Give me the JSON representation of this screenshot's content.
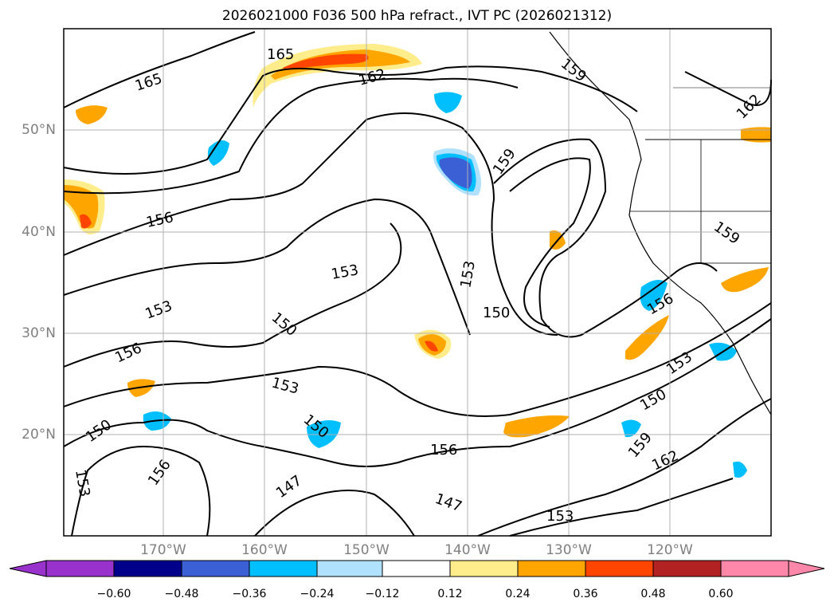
{
  "title": "2026021000 F036 500 hPa refract., IVT PC (2026021312)",
  "lat_labels": [
    "50°N",
    "40°N",
    "30°N",
    "20°N"
  ],
  "lon_labels": [
    "170°W",
    "160°W",
    "150°W",
    "140°W",
    "130°W",
    "120°W"
  ],
  "contour_labels": [
    "165",
    "162",
    "159",
    "156",
    "153",
    "150",
    "147"
  ],
  "colorbar": {
    "ticks": [
      "−0.60",
      "−0.48",
      "−0.36",
      "−0.24",
      "−0.12",
      "0.12",
      "0.24",
      "0.36",
      "0.48",
      "0.60"
    ],
    "colors": [
      "#9932cc",
      "#00008b",
      "#3b5fd4",
      "#00bfff",
      "#b0e2ff",
      "#ffffff",
      "#ffec8b",
      "#ffa500",
      "#ff4500",
      "#b22222",
      "#ff88aa"
    ]
  },
  "contour_label_texts": [
    "165",
    "165",
    "162",
    "159",
    "162",
    "159",
    "156",
    "159",
    "153",
    "153",
    "150",
    "150",
    "153",
    "156",
    "153",
    "150",
    "156",
    "153",
    "150",
    "150",
    "153",
    "156",
    "159",
    "156",
    "147",
    "147",
    "153"
  ]
}
